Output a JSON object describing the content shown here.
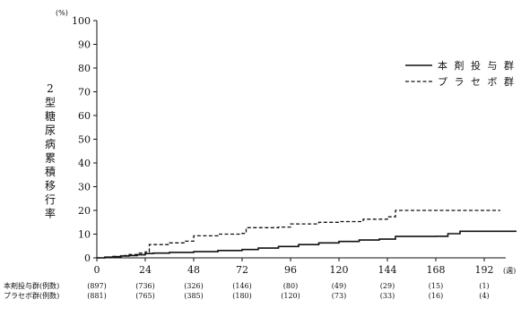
{
  "chart_data": {
    "type": "line",
    "step": true,
    "title": "",
    "ylabel": "2型糖尿病累積移行率",
    "yunit": "(%)",
    "xunit": "(週)",
    "xlim": [
      0,
      216
    ],
    "ylim": [
      0,
      100
    ],
    "xticks": [
      "0",
      "24",
      "48",
      "72",
      "96",
      "120",
      "144",
      "168",
      "192"
    ],
    "yticks": [
      "0",
      "10",
      "20",
      "30",
      "40",
      "50",
      "60",
      "70",
      "80",
      "90",
      "100"
    ],
    "legend_position": "right",
    "series": [
      {
        "name": "本 剤 投 与 群",
        "style": "solid",
        "x": [
          0,
          4,
          8,
          12,
          16,
          20,
          24,
          28,
          36,
          48,
          60,
          72,
          80,
          90,
          100,
          110,
          120,
          130,
          140,
          148,
          168,
          174,
          180,
          208
        ],
        "y": [
          0,
          0.3,
          0.5,
          0.8,
          1.0,
          1.3,
          1.8,
          2.0,
          2.3,
          2.6,
          3.1,
          3.5,
          4.1,
          4.8,
          5.6,
          6.3,
          6.9,
          7.5,
          7.9,
          9.0,
          9.1,
          10.2,
          11.2,
          11.2
        ]
      },
      {
        "name": "プ ラ セ ボ 群",
        "style": "dashed",
        "x": [
          0,
          4,
          8,
          12,
          16,
          20,
          24,
          26,
          36,
          44,
          48,
          60,
          72,
          74,
          90,
          96,
          110,
          120,
          132,
          144,
          148,
          168,
          200
        ],
        "y": [
          0,
          0.3,
          0.6,
          1.0,
          1.4,
          2.0,
          2.5,
          5.6,
          6.3,
          7.0,
          9.3,
          10.0,
          10.3,
          12.7,
          13.0,
          14.3,
          15.0,
          15.3,
          16.3,
          17.3,
          20.0,
          20.0,
          20.0
        ]
      }
    ],
    "at_risk": {
      "rows": [
        {
          "label": "本剤投与群(例数)",
          "values": [
            "(897)",
            "(736)",
            "(326)",
            "(146)",
            "(80)",
            "(49)",
            "(29)",
            "(15)",
            "(1)"
          ]
        },
        {
          "label": "プラセボ群(例数)",
          "values": [
            "(881)",
            "(765)",
            "(385)",
            "(180)",
            "(120)",
            "(73)",
            "(33)",
            "(16)",
            "(4)"
          ]
        }
      ]
    }
  }
}
